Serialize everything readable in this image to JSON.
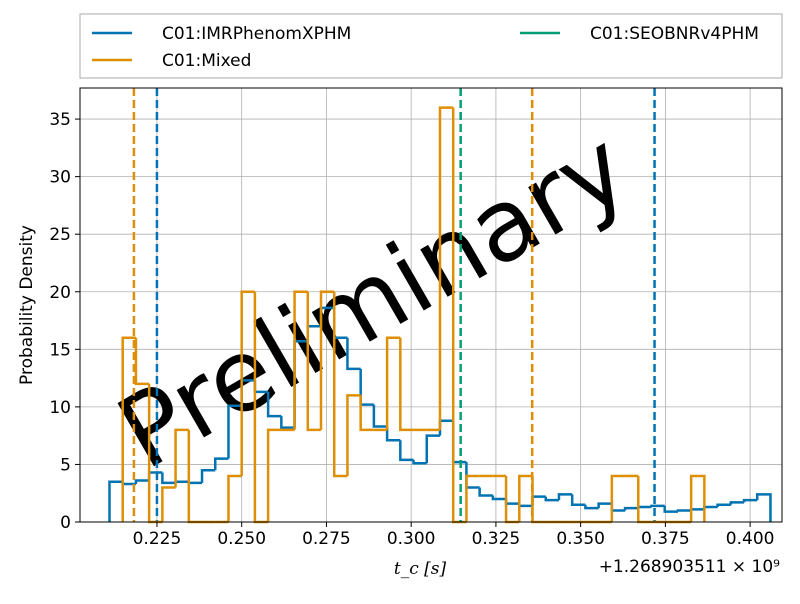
{
  "chart_data": {
    "type": "histogram",
    "x_label": "t_c [s]",
    "y_label": "Probability Density",
    "offset_label": "+1.268903511 × 10⁹",
    "watermark": "Preliminary",
    "xlim": [
      0.2023,
      0.4094
    ],
    "ylim": [
      0,
      37.7
    ],
    "xticks": [
      0.225,
      {
        "value": 0.25,
        "label": "0.250"
      },
      0.275,
      {
        "value": 0.3,
        "label": "0.300"
      },
      0.325,
      {
        "value": 0.35,
        "label": "0.350"
      },
      0.375,
      {
        "value": 0.4,
        "label": "0.400"
      }
    ],
    "yticks": [
      0,
      5,
      10,
      15,
      20,
      25,
      30,
      35
    ],
    "grid": true,
    "series": [
      {
        "name": "C01:IMRPhenomXPHM",
        "color": "#0173b2",
        "quantiles": [
          0.225,
          0.3718
        ],
        "bins": [
          0.211,
          0.2149,
          0.2188,
          0.2227,
          0.2266,
          0.2305,
          0.2344,
          0.2383,
          0.2422,
          0.2461,
          0.25,
          0.2539,
          0.2578,
          0.2617,
          0.2656,
          0.2695,
          0.2734,
          0.2773,
          0.2812,
          0.2851,
          0.289,
          0.2929,
          0.2968,
          0.3007,
          0.3046,
          0.3085,
          0.3124,
          0.3163,
          0.3202,
          0.3241,
          0.328,
          0.3319,
          0.3358,
          0.3397,
          0.3436,
          0.3475,
          0.3514,
          0.3553,
          0.3592,
          0.3631,
          0.367,
          0.3709,
          0.3748,
          0.3787,
          0.3826,
          0.3865,
          0.3904,
          0.3943,
          0.3982,
          0.4021,
          0.406
        ],
        "values": [
          3.5,
          3.3,
          3.6,
          4.3,
          3.4,
          3.5,
          3.4,
          4.5,
          5.5,
          10.1,
          12.3,
          11.3,
          9.2,
          8.2,
          15.7,
          17.0,
          18.6,
          16.0,
          13.3,
          10.2,
          8.3,
          7.1,
          5.4,
          5.1,
          7.5,
          8.8,
          5.2,
          3.0,
          2.3,
          2.0,
          1.6,
          1.4,
          2.2,
          1.9,
          2.4,
          1.5,
          1.2,
          1.6,
          1.0,
          1.2,
          1.3,
          1.4,
          0.9,
          1.0,
          1.1,
          1.3,
          1.5,
          1.7,
          1.9,
          2.4
        ]
      },
      {
        "name": "C01:Mixed",
        "color": "#de8f05",
        "quantiles": [
          0.2182,
          0.3357
        ],
        "bins": [
          0.2149,
          0.2188,
          0.2227,
          0.2266,
          0.2305,
          0.2344,
          0.2383,
          0.2422,
          0.2461,
          0.25,
          0.2539,
          0.2578,
          0.2617,
          0.2656,
          0.2695,
          0.2734,
          0.2773,
          0.2812,
          0.2851,
          0.289,
          0.2929,
          0.2968,
          0.3007,
          0.3046,
          0.3085,
          0.3124,
          0.3163,
          0.3202,
          0.3241,
          0.328,
          0.3319,
          0.3358,
          0.3397,
          0.3436,
          0.3475,
          0.3514,
          0.3553,
          0.3592,
          0.3631,
          0.367,
          0.3709,
          0.3748,
          0.3787,
          0.3826,
          0.3865
        ],
        "values": [
          16,
          12,
          0,
          3,
          8,
          0,
          0,
          0,
          4,
          20,
          0,
          8,
          8,
          20,
          8,
          20,
          4,
          11,
          8,
          8,
          16,
          8,
          8,
          8,
          36,
          0,
          4,
          4,
          4,
          0,
          4,
          0,
          0,
          0,
          0,
          0,
          0,
          4,
          4,
          0,
          0,
          0,
          0,
          4
        ]
      },
      {
        "name": "C01:SEOBNRv4PHM",
        "color": "#029e73",
        "quantiles": [
          0.3146
        ]
      }
    ]
  }
}
